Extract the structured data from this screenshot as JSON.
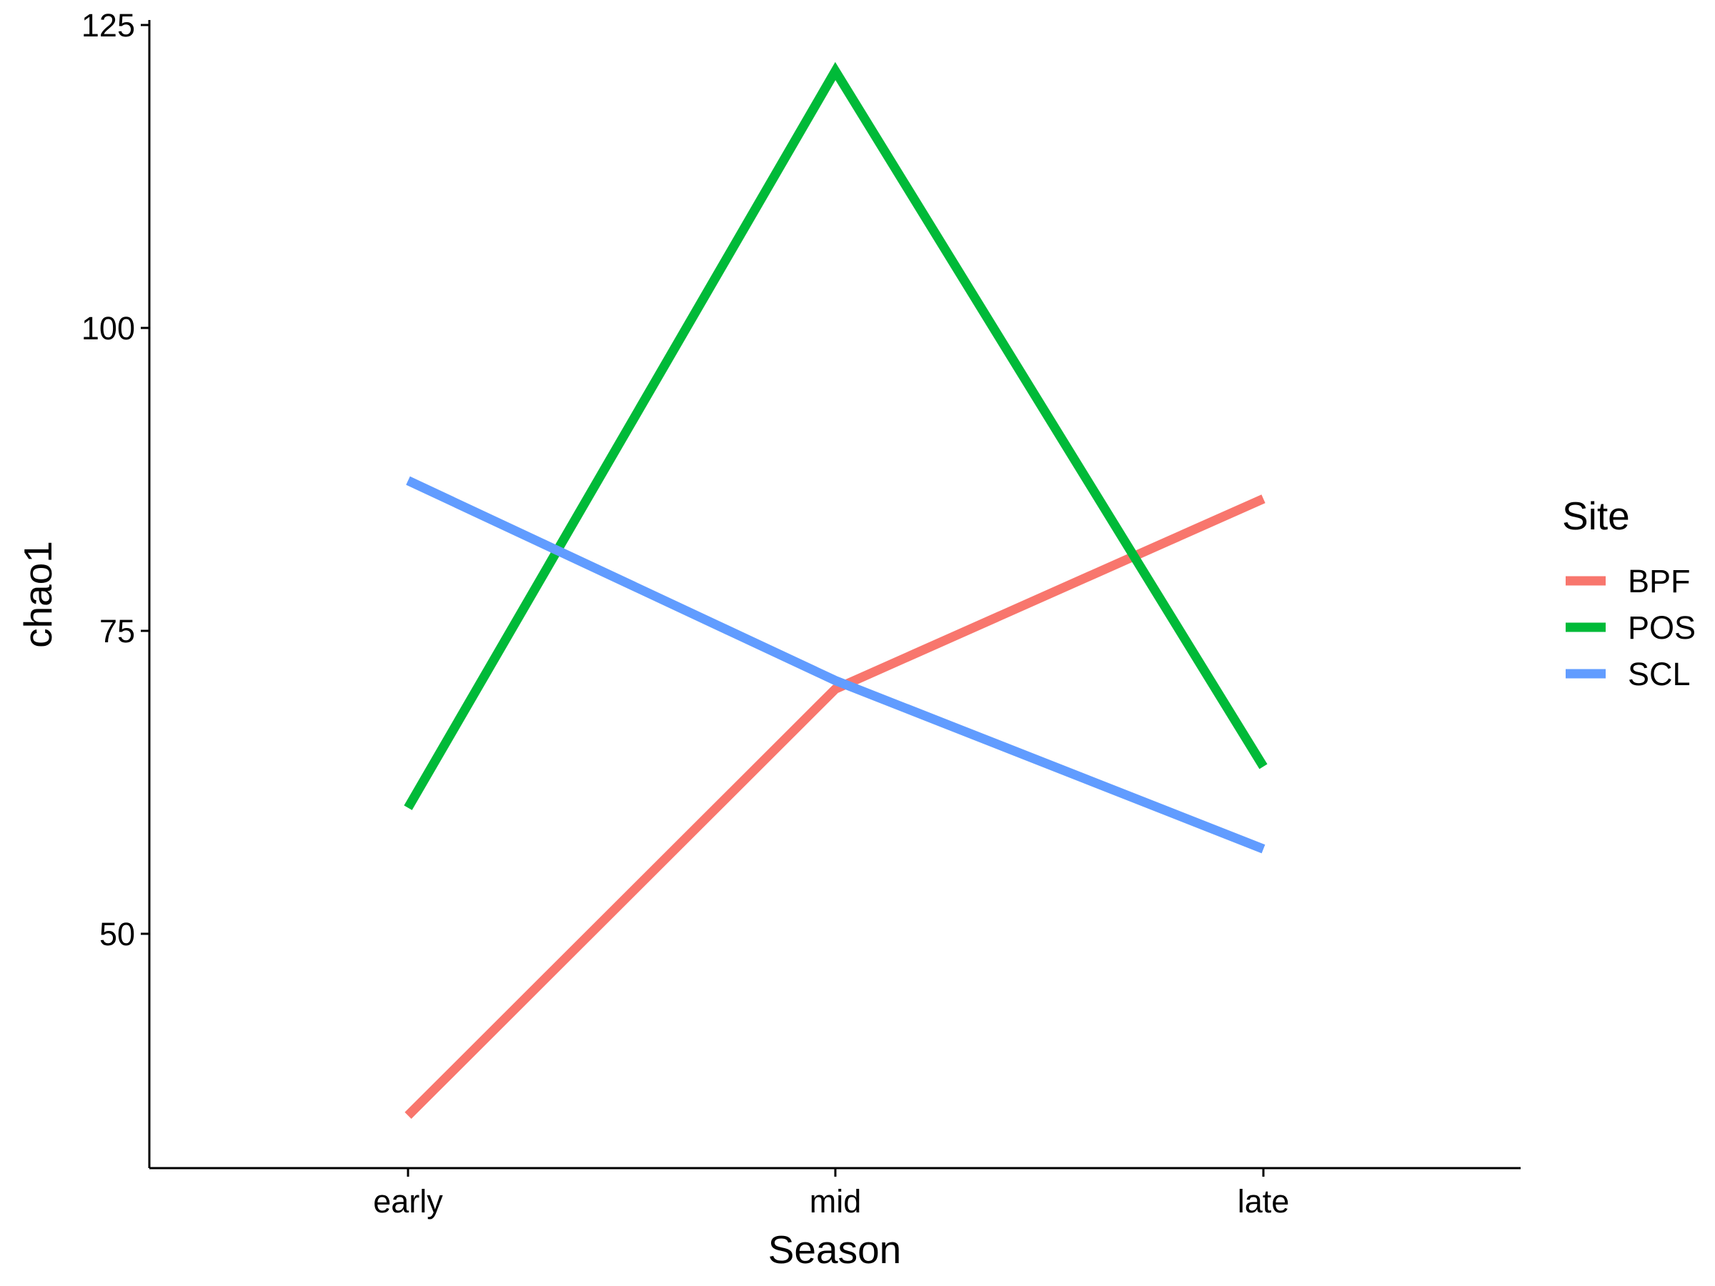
{
  "chart_data": {
    "type": "line",
    "xlabel": "Season",
    "ylabel": "chao1",
    "categories": [
      "early",
      "mid",
      "late"
    ],
    "ylim": [
      30.7,
      125
    ],
    "yticks": [
      50,
      75,
      100,
      125
    ],
    "grid": false,
    "legend": {
      "title": "Site",
      "placement": "right"
    },
    "series": [
      {
        "name": "BPF",
        "color": "#F8766D",
        "values": [
          35.0,
          70.2,
          85.9
        ]
      },
      {
        "name": "POS",
        "color": "#00BA38",
        "values": [
          60.4,
          121.2,
          63.8
        ]
      },
      {
        "name": "SCL",
        "color": "#619CFF",
        "values": [
          87.4,
          70.9,
          57.0
        ]
      }
    ]
  }
}
